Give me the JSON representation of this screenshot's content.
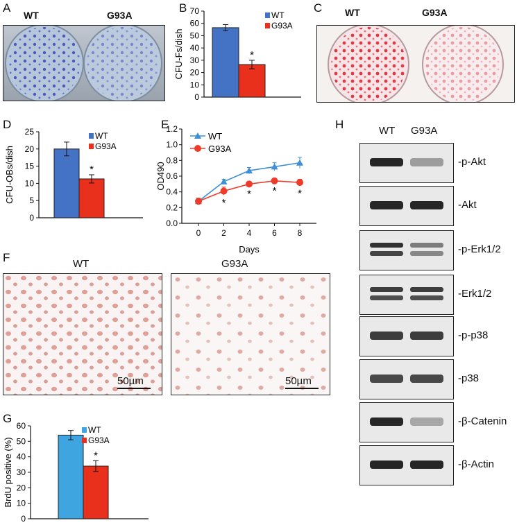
{
  "panels": {
    "A": {
      "letter": "A",
      "left_label": "WT",
      "right_label": "G93A"
    },
    "B": {
      "letter": "B"
    },
    "C": {
      "letter": "C",
      "left_label": "WT",
      "right_label": "G93A"
    },
    "D": {
      "letter": "D"
    },
    "E": {
      "letter": "E"
    },
    "F": {
      "letter": "F",
      "left_label": "WT",
      "right_label": "G93A",
      "scale_bar": "50µm"
    },
    "G": {
      "letter": "G"
    },
    "H": {
      "letter": "H",
      "col_wt": "WT",
      "col_g93a": "G93A"
    }
  },
  "colors": {
    "wt_bar": "#4472c4",
    "g93a_bar": "#e8301c",
    "wt_line": "#3d8fd6",
    "g93a_line": "#ef3b2a",
    "g_wt_bar": "#3ea5e0"
  },
  "western_blot": {
    "labels": [
      "-p-Akt",
      "-Akt",
      "-p-Erk1/2",
      "-Erk1/2",
      "-p-p38",
      "-p38",
      "-β-Catenin",
      "-β-Actin"
    ]
  },
  "chart_data": [
    {
      "panel": "B",
      "type": "bar",
      "ylabel": "CFU-Fs/dish",
      "categories": [
        "WT",
        "G93A"
      ],
      "values": [
        56.5,
        26.5
      ],
      "errors": [
        2.5,
        3.5
      ],
      "ylim": [
        0,
        70
      ],
      "yticks": [
        "0",
        "10",
        "20",
        "30",
        "40",
        "50",
        "60",
        "70"
      ],
      "legend": [
        "WT",
        "G93A"
      ],
      "significance": "*"
    },
    {
      "panel": "D",
      "type": "bar",
      "ylabel": "CFU-OBs/dish",
      "categories": [
        "WT",
        "G93A"
      ],
      "values": [
        20,
        11.3
      ],
      "errors": [
        2,
        1.2
      ],
      "ylim": [
        0,
        25
      ],
      "yticks": [
        "0",
        "5",
        "10",
        "15",
        "20",
        "25"
      ],
      "legend": [
        "WT",
        "G93A"
      ],
      "significance": "*"
    },
    {
      "panel": "E",
      "type": "line",
      "ylabel": "OD490",
      "xlabel": "Days",
      "x": [
        0,
        2,
        4,
        6,
        8
      ],
      "xticks": [
        "0",
        "2",
        "4",
        "6",
        "8"
      ],
      "ylim": [
        0,
        1.2
      ],
      "yticks": [
        "0.0",
        "0.2",
        "0.4",
        "0.6",
        "0.8",
        "1.0",
        "1.2"
      ],
      "series": [
        {
          "name": "WT",
          "values": [
            0.28,
            0.53,
            0.67,
            0.72,
            0.77
          ],
          "errors": [
            0.04,
            0.03,
            0.04,
            0.05,
            0.07
          ],
          "marker": "triangle"
        },
        {
          "name": "G93A",
          "values": [
            0.28,
            0.41,
            0.5,
            0.54,
            0.52
          ],
          "errors": [
            0.04,
            0.05,
            0.03,
            0.03,
            0.04
          ],
          "marker": "circle"
        }
      ],
      "significance": [
        "",
        "*",
        "*",
        "*",
        "*"
      ]
    },
    {
      "panel": "G",
      "type": "bar",
      "ylabel": "BrdU positive (%)",
      "categories": [
        "WT",
        "G93A"
      ],
      "values": [
        54,
        34
      ],
      "errors": [
        3,
        3.5
      ],
      "ylim": [
        0,
        60
      ],
      "yticks": [
        "0",
        "10",
        "20",
        "30",
        "40",
        "50",
        "60"
      ],
      "legend": [
        "WT",
        "G93A"
      ],
      "significance": "*"
    }
  ]
}
